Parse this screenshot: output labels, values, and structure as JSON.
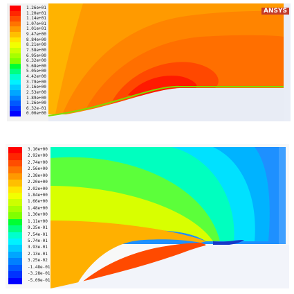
{
  "top": {
    "logo": "ANSYS",
    "legend_labels": [
      "1.26e+01",
      "1.20e+01",
      "1.14e+01",
      "1.07e+01",
      "1.01e+01",
      "9.47e+00",
      "8.84e+00",
      "8.21e+00",
      "7.58e+00",
      "6.95e+00",
      "6.32e+00",
      "5.68e+00",
      "5.05e+00",
      "4.42e+00",
      "3.79e+00",
      "3.16e+00",
      "2.53e+00",
      "1.89e+00",
      "1.26e+00",
      "6.32e-01",
      "0.00e+00"
    ],
    "legend_colors": [
      "#ff0000",
      "#ff2600",
      "#ff4d00",
      "#ff7300",
      "#ff9900",
      "#ffbf00",
      "#ffe500",
      "#f2ff00",
      "#ccff00",
      "#a6ff00",
      "#80ff00",
      "#00ff33",
      "#00ff80",
      "#00ffcc",
      "#00f2ff",
      "#00ccff",
      "#00a6ff",
      "#0080ff",
      "#0059ff",
      "#0033ff",
      "#0000ff"
    ]
  },
  "bottom": {
    "legend_labels": [
      "3.10e+00",
      "2.92e+00",
      "2.74e+00",
      "2.56e+00",
      "2.38e+00",
      "2.20e+00",
      "2.02e+00",
      "1.84e+00",
      "1.66e+00",
      "1.48e+00",
      "1.30e+00",
      "1.11e+00",
      "9.35e-01",
      "7.54e-01",
      "5.74e-01",
      "3.93e-01",
      "2.13e-01",
      "3.25e-02",
      "-1.48e-01",
      "-3.28e-01",
      "-5.09e-01"
    ],
    "legend_colors": [
      "#ff0000",
      "#ff2600",
      "#ff4d00",
      "#ff7300",
      "#ff9900",
      "#ffbf00",
      "#ffe500",
      "#f2ff00",
      "#ccff00",
      "#a6ff00",
      "#80ff00",
      "#00ff33",
      "#00ff80",
      "#00ffcc",
      "#00f2ff",
      "#00ccff",
      "#00a6ff",
      "#0080ff",
      "#0059ff",
      "#0033ff",
      "#0000ff"
    ]
  }
}
